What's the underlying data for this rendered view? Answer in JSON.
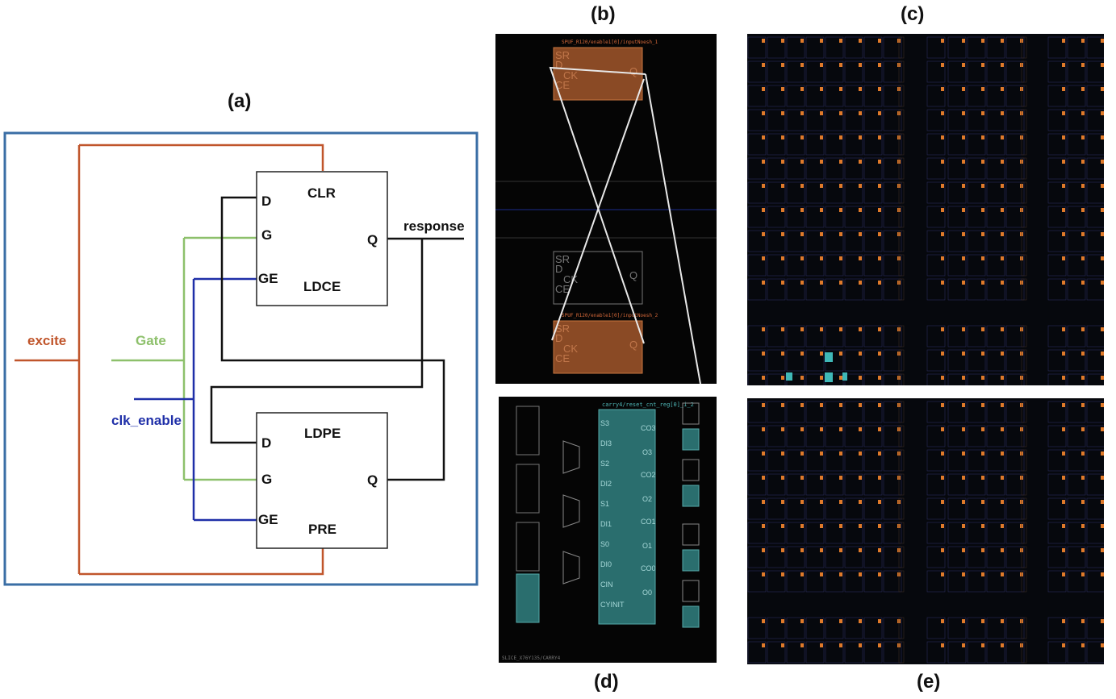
{
  "panels": {
    "a": "(a)",
    "b": "(b)",
    "c": "(c)",
    "d": "(d)",
    "e": "(e)"
  },
  "schematic": {
    "signals": {
      "excite": "excite",
      "gate": "Gate",
      "clk_enable": "clk_enable",
      "response": "response"
    },
    "ldce": {
      "name": "LDCE",
      "pin_clr": "CLR",
      "pin_d": "D",
      "pin_g": "G",
      "pin_ge": "GE",
      "pin_q": "Q"
    },
    "ldpe": {
      "name": "LDPE",
      "pin_pre": "PRE",
      "pin_d": "D",
      "pin_g": "G",
      "pin_ge": "GE",
      "pin_q": "Q"
    },
    "colors": {
      "border": "#3a6ea5",
      "excite": "#c0552b",
      "gate": "#8dc06b",
      "clk_enable": "#1f2fa8",
      "wire": "#111111"
    }
  },
  "device_b": {
    "top_cell_title": "SPUF_R120/enable1[0]/inputNoesh_1",
    "bottom_cell_title": "SPUF_R120/enable1[0]/inputNoesh_2",
    "pins": [
      "SR",
      "D",
      "CK",
      "CE"
    ],
    "out_pin": "Q",
    "cell_color": "#8a4a25"
  },
  "device_d": {
    "carry_title": "carry4/reset_cnt_reg[0]_i_2",
    "carry_left_pins": [
      "S3",
      "DI3",
      "S2",
      "DI2",
      "S1",
      "DI1",
      "S0",
      "DI0",
      "CIN",
      "CYINIT"
    ],
    "carry_right_pins": [
      "CO3",
      "O3",
      "CO2",
      "O2",
      "CO1",
      "O1",
      "CO0",
      "O0"
    ],
    "footer": "SLICE_X76Y135/CARRY4",
    "highlight_color": "#2a6e6e"
  }
}
